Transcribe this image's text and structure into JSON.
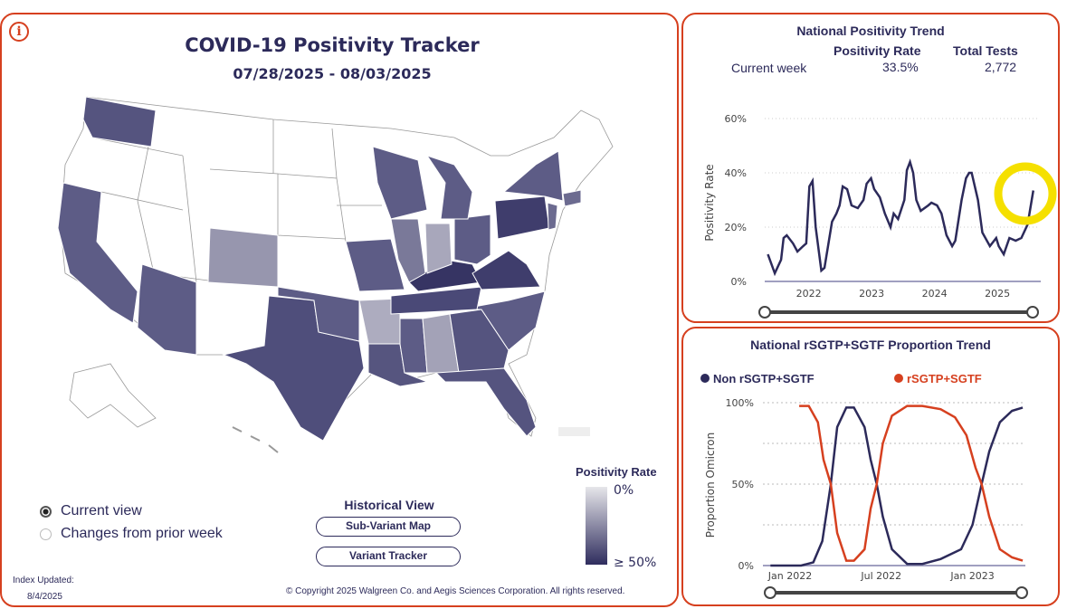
{
  "left": {
    "title": "COVID-19 Positivity Tracker",
    "date_range": "07/28/2025 - 08/03/2025",
    "view_options": [
      {
        "label": "Current view",
        "selected": true
      },
      {
        "label": "Changes from prior week",
        "selected": false
      }
    ],
    "historical": {
      "heading": "Historical View",
      "buttons": [
        "Sub-Variant Map",
        "Variant Tracker"
      ]
    },
    "legend": {
      "title": "Positivity Rate",
      "min_label": "0%",
      "max_label": "≥ 50%"
    },
    "index_updated_label": "Index Updated:",
    "index_updated_date": "8/4/2025",
    "copyright": "© Copyright 2025 Walgreen Co. and Aegis Sciences Corporation. All rights reserved.",
    "colors": {
      "accent": "#d6401f",
      "navy": "#2c2a5a"
    }
  },
  "trend": {
    "title": "National Positivity Trend",
    "col_rate": "Positivity Rate",
    "col_tests": "Total Tests",
    "row_label": "Current week",
    "rate": "33.5%",
    "tests": "2,772"
  },
  "proportion": {
    "title": "National rSGTP+SGTF Proportion Trend"
  },
  "chart_data": [
    {
      "type": "line",
      "title": "National Positivity Trend",
      "ylabel": "Positivity Rate",
      "ylim": [
        0,
        60
      ],
      "xlim": [
        2021.3,
        2025.6
      ],
      "yticks": [
        "0%",
        "20%",
        "40%",
        "60%"
      ],
      "xticks": [
        {
          "v": 2022,
          "label": "2022"
        },
        {
          "v": 2023,
          "label": "2023"
        },
        {
          "v": 2024,
          "label": "2024"
        },
        {
          "v": 2025,
          "label": "2025"
        }
      ],
      "series": [
        {
          "name": "Positivity Rate",
          "color": "#2c2a5a",
          "points": [
            [
              2021.35,
              10
            ],
            [
              2021.46,
              3
            ],
            [
              2021.56,
              8
            ],
            [
              2021.6,
              16
            ],
            [
              2021.65,
              17
            ],
            [
              2021.75,
              14
            ],
            [
              2021.82,
              11
            ],
            [
              2021.91,
              13
            ],
            [
              2021.96,
              14
            ],
            [
              2022.01,
              35
            ],
            [
              2022.06,
              37
            ],
            [
              2022.11,
              20
            ],
            [
              2022.2,
              4
            ],
            [
              2022.25,
              5
            ],
            [
              2022.37,
              22
            ],
            [
              2022.44,
              25
            ],
            [
              2022.49,
              28
            ],
            [
              2022.54,
              35
            ],
            [
              2022.61,
              34
            ],
            [
              2022.68,
              28
            ],
            [
              2022.78,
              27
            ],
            [
              2022.87,
              30
            ],
            [
              2022.92,
              36
            ],
            [
              2022.99,
              38
            ],
            [
              2023.04,
              34
            ],
            [
              2023.13,
              31
            ],
            [
              2023.21,
              25
            ],
            [
              2023.3,
              20
            ],
            [
              2023.35,
              25
            ],
            [
              2023.42,
              23
            ],
            [
              2023.52,
              30
            ],
            [
              2023.56,
              41
            ],
            [
              2023.61,
              44
            ],
            [
              2023.66,
              40
            ],
            [
              2023.71,
              30
            ],
            [
              2023.78,
              26
            ],
            [
              2023.9,
              28
            ],
            [
              2023.95,
              29
            ],
            [
              2024.04,
              28
            ],
            [
              2024.11,
              25
            ],
            [
              2024.19,
              17
            ],
            [
              2024.28,
              13
            ],
            [
              2024.33,
              15
            ],
            [
              2024.43,
              30
            ],
            [
              2024.5,
              38
            ],
            [
              2024.55,
              40
            ],
            [
              2024.59,
              40
            ],
            [
              2024.69,
              30
            ],
            [
              2024.76,
              18
            ],
            [
              2024.88,
              13
            ],
            [
              2024.98,
              16
            ],
            [
              2025.02,
              13
            ],
            [
              2025.1,
              10
            ],
            [
              2025.19,
              16
            ],
            [
              2025.29,
              15
            ],
            [
              2025.38,
              16
            ],
            [
              2025.48,
              21
            ],
            [
              2025.57,
              33.5
            ]
          ]
        }
      ]
    },
    {
      "type": "line",
      "title": "National rSGTP+SGTF Proportion Trend",
      "ylabel": "Proportion Omicron",
      "ylim": [
        0,
        100
      ],
      "xlim_months_from_jan2022": [
        -1.5,
        16
      ],
      "yticks": [
        "0%",
        "50%",
        "100%"
      ],
      "xticks": [
        {
          "v": 0,
          "label": "Jan 2022"
        },
        {
          "v": 6,
          "label": "Jul 2022"
        },
        {
          "v": 12,
          "label": "Jan 2023"
        }
      ],
      "series": [
        {
          "name": "Non rSGTP+SGTF",
          "color": "#2c2a5a",
          "points": [
            [
              -1.29,
              0
            ],
            [
              0.73,
              0
            ],
            [
              1.53,
              2
            ],
            [
              2.12,
              15
            ],
            [
              2.68,
              50
            ],
            [
              3.1,
              85
            ],
            [
              3.7,
              97
            ],
            [
              4.2,
              97
            ],
            [
              4.9,
              85
            ],
            [
              5.3,
              65
            ],
            [
              5.7,
              50
            ],
            [
              6.1,
              30
            ],
            [
              6.7,
              10
            ],
            [
              7.7,
              1
            ],
            [
              8.7,
              1
            ],
            [
              9.9,
              4
            ],
            [
              11.25,
              10
            ],
            [
              12.0,
              25
            ],
            [
              12.6,
              50
            ],
            [
              13.1,
              70
            ],
            [
              13.8,
              88
            ],
            [
              14.6,
              95
            ],
            [
              15.3,
              97
            ]
          ]
        },
        {
          "name": "rSGTP+SGTF",
          "color": "#d6401f",
          "points": [
            [
              0.6,
              98
            ],
            [
              1.23,
              98
            ],
            [
              1.83,
              88
            ],
            [
              2.2,
              65
            ],
            [
              2.68,
              50
            ],
            [
              3.1,
              20
            ],
            [
              3.7,
              3
            ],
            [
              4.2,
              3
            ],
            [
              4.9,
              10
            ],
            [
              5.3,
              35
            ],
            [
              5.7,
              50
            ],
            [
              6.1,
              75
            ],
            [
              6.7,
              92
            ],
            [
              7.7,
              98
            ],
            [
              8.7,
              98
            ],
            [
              9.9,
              96
            ],
            [
              10.85,
              91
            ],
            [
              11.6,
              80
            ],
            [
              12.2,
              60
            ],
            [
              12.6,
              50
            ],
            [
              13.1,
              30
            ],
            [
              13.8,
              10
            ],
            [
              14.6,
              5
            ],
            [
              15.3,
              3
            ]
          ]
        }
      ]
    }
  ]
}
